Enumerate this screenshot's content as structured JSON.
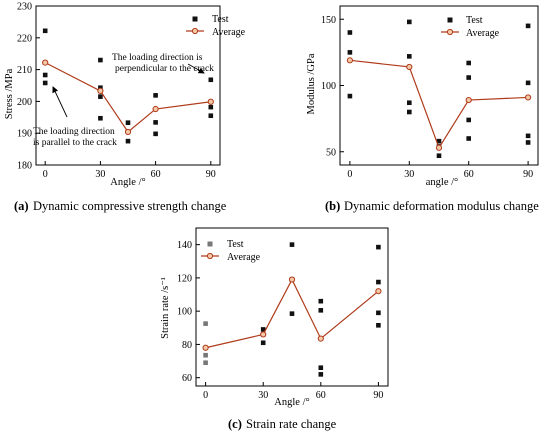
{
  "colors": {
    "test_marker": "#111111",
    "test_marker_at_zero": "#777777",
    "average_line": "#b03a1a",
    "average_marker_fill": "#f4c9a8"
  },
  "chart_data": [
    {
      "type": "scatter",
      "caption_label": "(a)",
      "caption_text": "Dynamic compressive strength change",
      "xlabel": "Angle /°",
      "ylabel": "Stress /MPa",
      "xlim": [
        -5,
        95
      ],
      "ylim": [
        180,
        230
      ],
      "xticks": [
        "0",
        "30",
        "60",
        "90"
      ],
      "xtick_values": [
        0,
        30,
        60,
        90
      ],
      "yticks": [
        "180",
        "190",
        "200",
        "210",
        "220",
        "230"
      ],
      "ytick_values": [
        180,
        190,
        200,
        210,
        220,
        230
      ],
      "legend": {
        "position": "top-right",
        "test_label": "Test",
        "average_label": "Average"
      },
      "series": [
        {
          "name": "Test",
          "points": [
            [
              0,
              222.2
            ],
            [
              0,
              208.3
            ],
            [
              0,
              205.8
            ],
            [
              30,
              213.0
            ],
            [
              30,
              204.3
            ],
            [
              30,
              201.5
            ],
            [
              30,
              194.7
            ],
            [
              45,
              193.3
            ],
            [
              45,
              187.5
            ],
            [
              60,
              201.9
            ],
            [
              60,
              193.4
            ],
            [
              60,
              189.8
            ],
            [
              90,
              206.8
            ],
            [
              90,
              198.2
            ],
            [
              90,
              195.5
            ]
          ]
        },
        {
          "name": "Average",
          "points": [
            [
              0,
              212.2
            ],
            [
              30,
              203.3
            ],
            [
              45,
              190.4
            ],
            [
              60,
              197.6
            ],
            [
              90,
              199.9
            ]
          ]
        }
      ],
      "annotations": [
        {
          "lines": [
            "The loading direction is",
            "perpendicular to the crack"
          ],
          "arrow_at": [
            90,
            205.5
          ]
        },
        {
          "lines": [
            "The loading direction",
            "is parallel to the crack"
          ],
          "arrow_at": [
            2,
            203
          ]
        }
      ]
    },
    {
      "type": "scatter",
      "caption_label": "(b)",
      "caption_text": "Dynamic deformation modulus change",
      "xlabel": "angle /°",
      "ylabel": "Modulus /GPa",
      "xlim": [
        -5,
        95
      ],
      "ylim": [
        40,
        160
      ],
      "xticks": [
        "0",
        "30",
        "60",
        "90"
      ],
      "xtick_values": [
        0,
        30,
        60,
        90
      ],
      "yticks": [
        "50",
        "100",
        "150"
      ],
      "ytick_values": [
        50,
        100,
        150
      ],
      "legend": {
        "position": "top-right",
        "test_label": "Test",
        "average_label": "Average"
      },
      "series": [
        {
          "name": "Test",
          "points": [
            [
              0,
              140
            ],
            [
              0,
              125
            ],
            [
              0,
              92
            ],
            [
              30,
              148
            ],
            [
              30,
              122
            ],
            [
              30,
              87
            ],
            [
              30,
              80
            ],
            [
              45,
              58
            ],
            [
              45,
              54
            ],
            [
              45,
              47
            ],
            [
              60,
              117
            ],
            [
              60,
              106
            ],
            [
              60,
              74
            ],
            [
              60,
              60
            ],
            [
              90,
              145
            ],
            [
              90,
              102
            ],
            [
              90,
              62
            ],
            [
              90,
              57
            ]
          ]
        },
        {
          "name": "Average",
          "points": [
            [
              0,
              119
            ],
            [
              30,
              114
            ],
            [
              45,
              53
            ],
            [
              60,
              89
            ],
            [
              90,
              91
            ]
          ]
        }
      ]
    },
    {
      "type": "scatter",
      "caption_label": "(c)",
      "caption_text": "Strain rate change",
      "xlabel": "Angle /°",
      "ylabel": "Strain rate /s⁻¹",
      "xlim": [
        -5,
        95
      ],
      "ylim": [
        55,
        150
      ],
      "xticks": [
        "0",
        "30",
        "60",
        "90"
      ],
      "xtick_values": [
        0,
        30,
        60,
        90
      ],
      "yticks": [
        "60",
        "80",
        "100",
        "120",
        "140"
      ],
      "ytick_values": [
        60,
        80,
        100,
        120,
        140
      ],
      "legend": {
        "position": "top-left",
        "test_label": "Test",
        "average_label": "Average"
      },
      "series": [
        {
          "name": "Test",
          "points": [
            [
              0,
              92.5
            ],
            [
              0,
              73.5
            ],
            [
              0,
              69
            ],
            [
              30,
              89
            ],
            [
              30,
              86
            ],
            [
              30,
              81
            ],
            [
              45,
              140
            ],
            [
              45,
              119
            ],
            [
              45,
              98.5
            ],
            [
              60,
              106
            ],
            [
              60,
              100.5
            ],
            [
              60,
              66
            ],
            [
              60,
              62
            ],
            [
              90,
              138.5
            ],
            [
              90,
              117.5
            ],
            [
              90,
              99
            ],
            [
              90,
              91.5
            ]
          ]
        },
        {
          "name": "Average",
          "points": [
            [
              0,
              78
            ],
            [
              30,
              86
            ],
            [
              45,
              119
            ],
            [
              60,
              83.5
            ],
            [
              90,
              112
            ]
          ]
        }
      ]
    }
  ]
}
